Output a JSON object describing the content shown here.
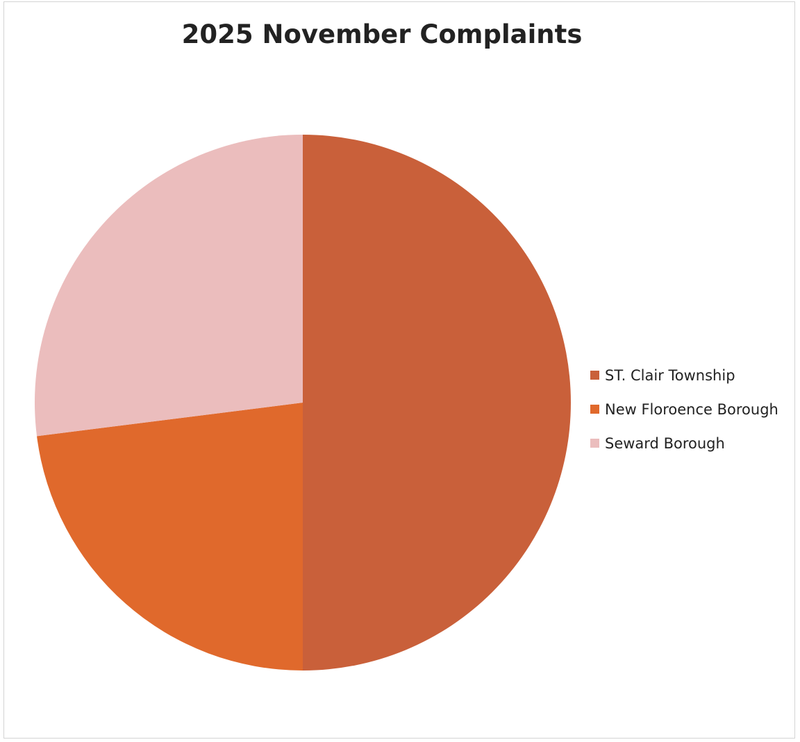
{
  "chart_data": {
    "type": "pie",
    "title": "2025 November Complaints",
    "categories": [
      "ST. Clair Township",
      "New Floroence Borough",
      "Seward Borough"
    ],
    "values": [
      50,
      23,
      27
    ],
    "colors": [
      "#c9603a",
      "#e0692c",
      "#ebbdbd"
    ],
    "start_angle": "12 o'clock",
    "direction": "clockwise",
    "legend_position": "right"
  }
}
